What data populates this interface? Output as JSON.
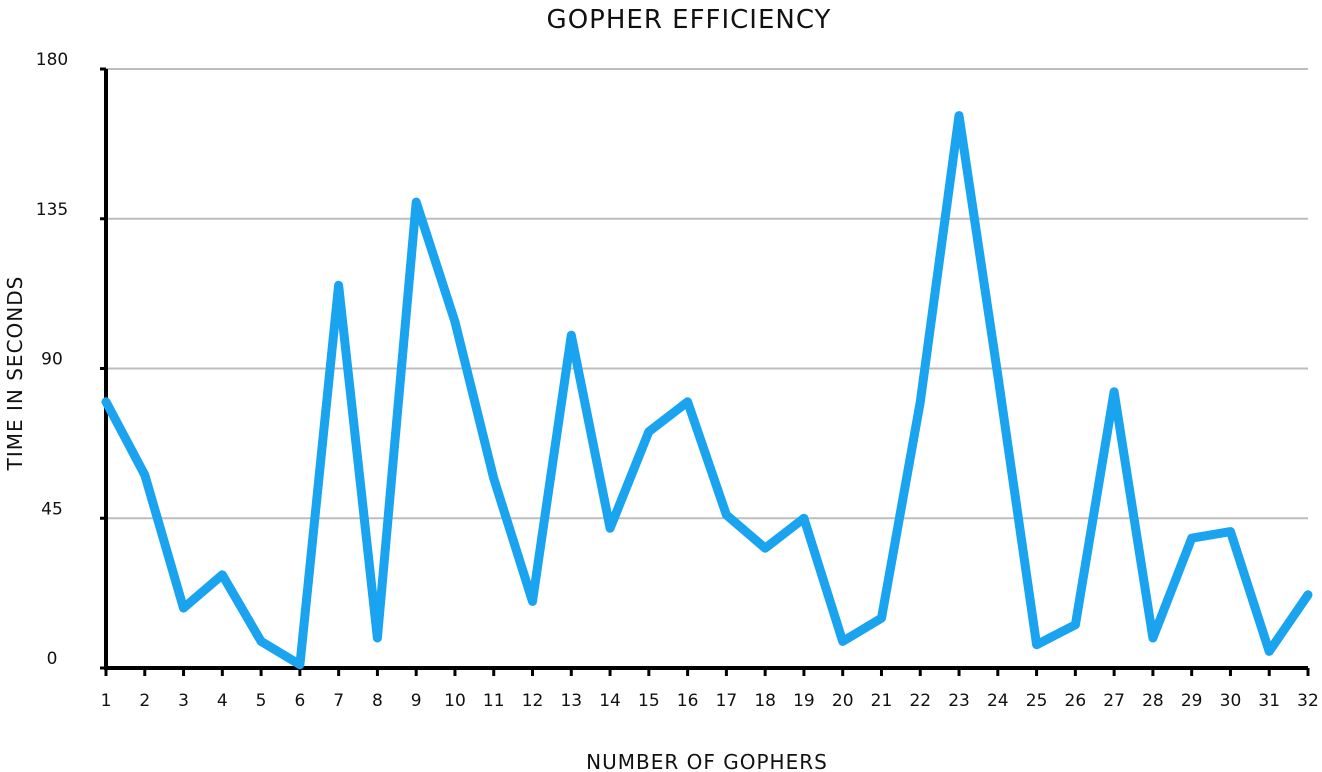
{
  "chart_data": {
    "type": "line",
    "title": "GOPHER EFFICIENCY",
    "xlabel": "NUMBER OF GOPHERS",
    "ylabel": "TIME IN SECONDS",
    "ylim": [
      0,
      180
    ],
    "yticks": [
      "0",
      "45",
      "90",
      "135",
      "180"
    ],
    "categories": [
      "1",
      "2",
      "3",
      "4",
      "5",
      "6",
      "7",
      "8",
      "9",
      "10",
      "11",
      "12",
      "13",
      "14",
      "15",
      "16",
      "17",
      "18",
      "19",
      "20",
      "21",
      "22",
      "23",
      "24",
      "25",
      "26",
      "27",
      "28",
      "29",
      "30",
      "31",
      "32"
    ],
    "grid": true,
    "series": [
      {
        "color": "#1aa3ef",
        "values": [
          80,
          58,
          18,
          28,
          8,
          1,
          115,
          9,
          140,
          104,
          57,
          20,
          100,
          42,
          71,
          80,
          46,
          36,
          45,
          8,
          15,
          80,
          166,
          88,
          7,
          13,
          83,
          9,
          39,
          41,
          5,
          22
        ]
      }
    ]
  }
}
